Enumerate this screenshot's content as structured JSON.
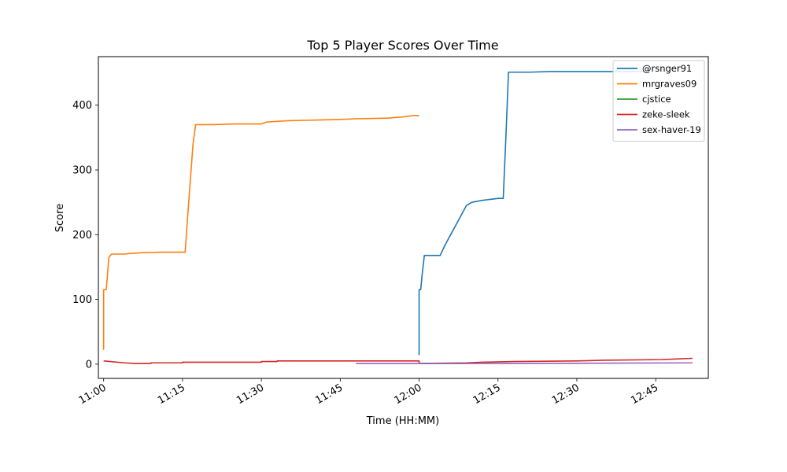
{
  "chart_data": {
    "type": "line",
    "title": "Top 5 Player Scores Over Time",
    "xlabel": "Time (HH:MM)",
    "ylabel": "Score",
    "xlim": [
      "10:59",
      "12:55"
    ],
    "ylim": [
      -22,
      475
    ],
    "x_ticks": [
      "11:00",
      "11:15",
      "11:30",
      "11:45",
      "12:00",
      "12:15",
      "12:30",
      "12:45"
    ],
    "y_ticks": [
      0,
      100,
      200,
      300,
      400
    ],
    "grid": false,
    "legend_position": "top-right",
    "series": [
      {
        "name": "@rsnger91",
        "color": "#1f77b4",
        "points": [
          [
            "12:00",
            14
          ],
          [
            "12:00",
            115
          ],
          [
            "12:00.3",
            115
          ],
          [
            "12:00.6",
            140
          ],
          [
            "12:01",
            168
          ],
          [
            "12:04",
            168
          ],
          [
            "12:05",
            185
          ],
          [
            "12:06",
            200
          ],
          [
            "12:07",
            215
          ],
          [
            "12:08",
            230
          ],
          [
            "12:09",
            245
          ],
          [
            "12:10",
            250
          ],
          [
            "12:12",
            253
          ],
          [
            "12:13",
            254
          ],
          [
            "12:14",
            255
          ],
          [
            "12:15",
            256
          ],
          [
            "12:16",
            256
          ],
          [
            "12:16.5",
            350
          ],
          [
            "12:17",
            451
          ],
          [
            "12:21",
            451
          ],
          [
            "12:25",
            452
          ],
          [
            "12:30",
            452
          ],
          [
            "12:40",
            452
          ],
          [
            "12:44",
            453
          ]
        ]
      },
      {
        "name": "mrgraves09",
        "color": "#ff7f0e",
        "points": [
          [
            "11:00",
            22
          ],
          [
            "11:00",
            115
          ],
          [
            "11:00.5",
            115
          ],
          [
            "11:01",
            165
          ],
          [
            "11:01.5",
            170
          ],
          [
            "11:04",
            170
          ],
          [
            "11:05",
            171
          ],
          [
            "11:07",
            172
          ],
          [
            "11:11",
            173
          ],
          [
            "11:15",
            173
          ],
          [
            "11:15.5",
            173
          ],
          [
            "11:16",
            230
          ],
          [
            "11:17",
            340
          ],
          [
            "11:17.5",
            370
          ],
          [
            "11:21",
            370
          ],
          [
            "11:25",
            371
          ],
          [
            "11:30",
            371
          ],
          [
            "11:31",
            374
          ],
          [
            "11:33",
            375
          ],
          [
            "11:35",
            376
          ],
          [
            "11:40",
            377
          ],
          [
            "11:45",
            378
          ],
          [
            "11:48",
            379
          ],
          [
            "11:54",
            380
          ],
          [
            "11:57",
            382
          ],
          [
            "11:59",
            384
          ],
          [
            "12:00",
            384
          ]
        ]
      },
      {
        "name": "cjstice",
        "color": "#2ca02c",
        "points": [
          [
            "12:00",
            1
          ],
          [
            "12:09",
            1
          ]
        ]
      },
      {
        "name": "zeke-sleek",
        "color": "#d62728",
        "points": [
          [
            "11:00",
            5
          ],
          [
            "11:04",
            2
          ],
          [
            "11:06",
            1
          ],
          [
            "11:09",
            1
          ],
          [
            "11:09",
            2
          ],
          [
            "11:15",
            2
          ],
          [
            "11:15",
            3
          ],
          [
            "11:30",
            3
          ],
          [
            "11:30",
            4
          ],
          [
            "11:33",
            4
          ],
          [
            "11:33",
            5
          ],
          [
            "12:00",
            5
          ],
          [
            "12:00",
            1
          ],
          [
            "12:09",
            2
          ],
          [
            "12:12",
            3
          ],
          [
            "12:18",
            4
          ],
          [
            "12:30",
            5
          ],
          [
            "12:35",
            6
          ],
          [
            "12:46",
            7
          ],
          [
            "12:49",
            8
          ],
          [
            "12:52",
            9
          ]
        ]
      },
      {
        "name": "sex-haver-19",
        "color": "#9467bd",
        "points": [
          [
            "11:48",
            1
          ],
          [
            "12:00",
            1
          ],
          [
            "12:15",
            1
          ],
          [
            "12:52",
            2
          ]
        ]
      }
    ]
  }
}
